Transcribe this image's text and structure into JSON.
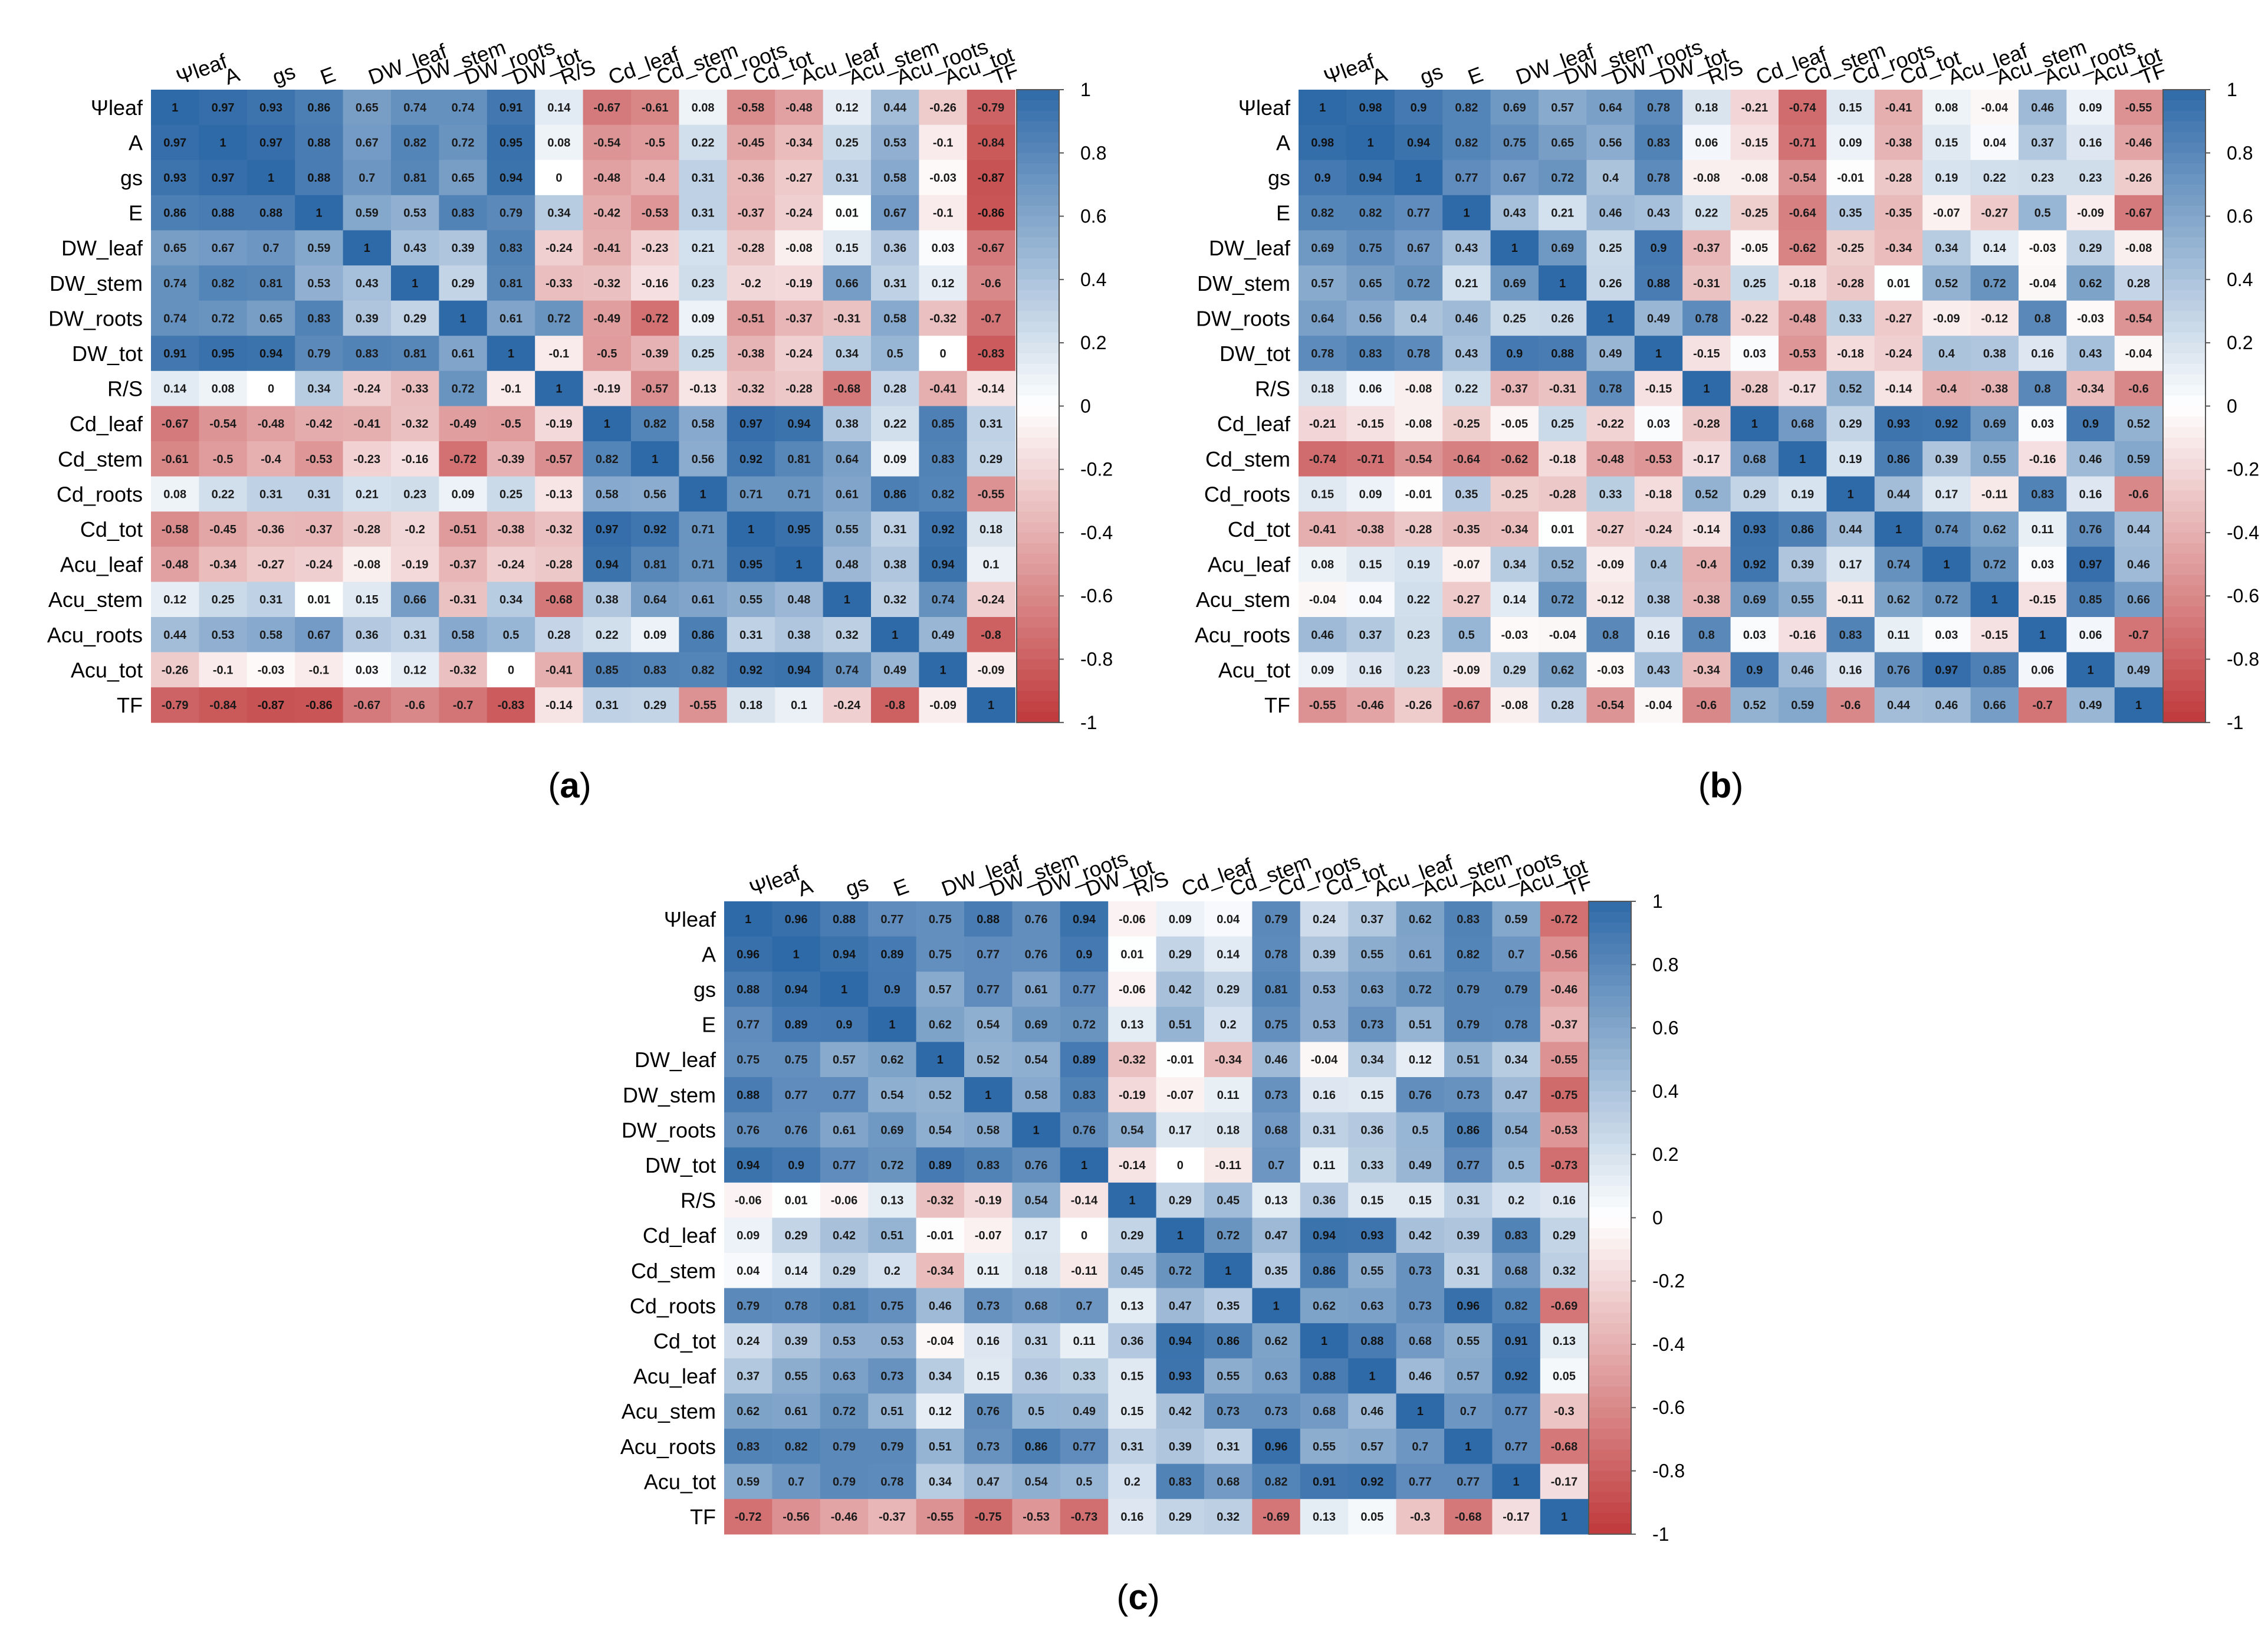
{
  "variables": [
    "Ψleaf",
    "A",
    "gs",
    "E",
    "DW_leaf",
    "DW_stem",
    "DW_roots",
    "DW_tot",
    "R/S",
    "Cd_leaf",
    "Cd_stem",
    "Cd_roots",
    "Cd_tot",
    "Acu_leaf",
    "Acu_stem",
    "Acu_roots",
    "Acu_tot",
    "TF"
  ],
  "colorbar": {
    "ticks": [
      "1",
      "0.8",
      "0.6",
      "0.4",
      "0.2",
      "0",
      "-0.2",
      "-0.4",
      "-0.6",
      "-0.8",
      "-1"
    ],
    "colors": {
      "positive": "#2f6aa8",
      "neutral": "#ffffff",
      "negative": "#c0393b"
    }
  },
  "chart_data": [
    {
      "type": "heatmap",
      "panel_label": "a",
      "title": "",
      "vrange": [
        -1,
        1
      ],
      "values": [
        [
          "1",
          "0.97",
          "0.93",
          "0.86",
          "0.65",
          "0.74",
          "0.74",
          "0.91",
          "0.14",
          "-0.67",
          "-0.61",
          "0.08",
          "-0.58",
          "-0.48",
          "0.12",
          "0.44",
          "-0.26",
          "-0.79"
        ],
        [
          "0.97",
          "1",
          "0.97",
          "0.88",
          "0.67",
          "0.82",
          "0.72",
          "0.95",
          "0.08",
          "-0.54",
          "-0.5",
          "0.22",
          "-0.45",
          "-0.34",
          "0.25",
          "0.53",
          "-0.1",
          "-0.84"
        ],
        [
          "0.93",
          "0.97",
          "1",
          "0.88",
          "0.7",
          "0.81",
          "0.65",
          "0.94",
          "0",
          "-0.48",
          "-0.4",
          "0.31",
          "-0.36",
          "-0.27",
          "0.31",
          "0.58",
          "-0.03",
          "-0.87"
        ],
        [
          "0.86",
          "0.88",
          "0.88",
          "1",
          "0.59",
          "0.53",
          "0.83",
          "0.79",
          "0.34",
          "-0.42",
          "-0.53",
          "0.31",
          "-0.37",
          "-0.24",
          "0.01",
          "0.67",
          "-0.1",
          "-0.86"
        ],
        [
          "0.65",
          "0.67",
          "0.7",
          "0.59",
          "1",
          "0.43",
          "0.39",
          "0.83",
          "-0.24",
          "-0.41",
          "-0.23",
          "0.21",
          "-0.28",
          "-0.08",
          "0.15",
          "0.36",
          "0.03",
          "-0.67"
        ],
        [
          "0.74",
          "0.82",
          "0.81",
          "0.53",
          "0.43",
          "1",
          "0.29",
          "0.81",
          "-0.33",
          "-0.32",
          "-0.16",
          "0.23",
          "-0.2",
          "-0.19",
          "0.66",
          "0.31",
          "0.12",
          "-0.6"
        ],
        [
          "0.74",
          "0.72",
          "0.65",
          "0.83",
          "0.39",
          "0.29",
          "1",
          "0.61",
          "0.72",
          "-0.49",
          "-0.72",
          "0.09",
          "-0.51",
          "-0.37",
          "-0.31",
          "0.58",
          "-0.32",
          "-0.7"
        ],
        [
          "0.91",
          "0.95",
          "0.94",
          "0.79",
          "0.83",
          "0.81",
          "0.61",
          "1",
          "-0.1",
          "-0.5",
          "-0.39",
          "0.25",
          "-0.38",
          "-0.24",
          "0.34",
          "0.5",
          "0",
          "-0.83"
        ],
        [
          "0.14",
          "0.08",
          "0",
          "0.34",
          "-0.24",
          "-0.33",
          "0.72",
          "-0.1",
          "1",
          "-0.19",
          "-0.57",
          "-0.13",
          "-0.32",
          "-0.28",
          "-0.68",
          "0.28",
          "-0.41",
          "-0.14"
        ],
        [
          "-0.67",
          "-0.54",
          "-0.48",
          "-0.42",
          "-0.41",
          "-0.32",
          "-0.49",
          "-0.5",
          "-0.19",
          "1",
          "0.82",
          "0.58",
          "0.97",
          "0.94",
          "0.38",
          "0.22",
          "0.85",
          "0.31"
        ],
        [
          "-0.61",
          "-0.5",
          "-0.4",
          "-0.53",
          "-0.23",
          "-0.16",
          "-0.72",
          "-0.39",
          "-0.57",
          "0.82",
          "1",
          "0.56",
          "0.92",
          "0.81",
          "0.64",
          "0.09",
          "0.83",
          "0.29"
        ],
        [
          "0.08",
          "0.22",
          "0.31",
          "0.31",
          "0.21",
          "0.23",
          "0.09",
          "0.25",
          "-0.13",
          "0.58",
          "0.56",
          "1",
          "0.71",
          "0.71",
          "0.61",
          "0.86",
          "0.82",
          "-0.55"
        ],
        [
          "-0.58",
          "-0.45",
          "-0.36",
          "-0.37",
          "-0.28",
          "-0.2",
          "-0.51",
          "-0.38",
          "-0.32",
          "0.97",
          "0.92",
          "0.71",
          "1",
          "0.95",
          "0.55",
          "0.31",
          "0.92",
          "0.18"
        ],
        [
          "-0.48",
          "-0.34",
          "-0.27",
          "-0.24",
          "-0.08",
          "-0.19",
          "-0.37",
          "-0.24",
          "-0.28",
          "0.94",
          "0.81",
          "0.71",
          "0.95",
          "1",
          "0.48",
          "0.38",
          "0.94",
          "0.1"
        ],
        [
          "0.12",
          "0.25",
          "0.31",
          "0.01",
          "0.15",
          "0.66",
          "-0.31",
          "0.34",
          "-0.68",
          "0.38",
          "0.64",
          "0.61",
          "0.55",
          "0.48",
          "1",
          "0.32",
          "0.74",
          "-0.24"
        ],
        [
          "0.44",
          "0.53",
          "0.58",
          "0.67",
          "0.36",
          "0.31",
          "0.58",
          "0.5",
          "0.28",
          "0.22",
          "0.09",
          "0.86",
          "0.31",
          "0.38",
          "0.32",
          "1",
          "0.49",
          "-0.8"
        ],
        [
          "-0.26",
          "-0.1",
          "-0.03",
          "-0.1",
          "0.03",
          "0.12",
          "-0.32",
          "0",
          "-0.41",
          "0.85",
          "0.83",
          "0.82",
          "0.92",
          "0.94",
          "0.74",
          "0.49",
          "1",
          "-0.09"
        ],
        [
          "-0.79",
          "-0.84",
          "-0.87",
          "-0.86",
          "-0.67",
          "-0.6",
          "-0.7",
          "-0.83",
          "-0.14",
          "0.31",
          "0.29",
          "-0.55",
          "0.18",
          "0.1",
          "-0.24",
          "-0.8",
          "-0.09",
          "1"
        ]
      ]
    },
    {
      "type": "heatmap",
      "panel_label": "b",
      "title": "",
      "vrange": [
        -1,
        1
      ],
      "values": [
        [
          "1",
          "0.98",
          "0.9",
          "0.82",
          "0.69",
          "0.57",
          "0.64",
          "0.78",
          "0.18",
          "-0.21",
          "-0.74",
          "0.15",
          "-0.41",
          "0.08",
          "-0.04",
          "0.46",
          "0.09",
          "-0.55"
        ],
        [
          "0.98",
          "1",
          "0.94",
          "0.82",
          "0.75",
          "0.65",
          "0.56",
          "0.83",
          "0.06",
          "-0.15",
          "-0.71",
          "0.09",
          "-0.38",
          "0.15",
          "0.04",
          "0.37",
          "0.16",
          "-0.46"
        ],
        [
          "0.9",
          "0.94",
          "1",
          "0.77",
          "0.67",
          "0.72",
          "0.4",
          "0.78",
          "-0.08",
          "-0.08",
          "-0.54",
          "-0.01",
          "-0.28",
          "0.19",
          "0.22",
          "0.23",
          "0.23",
          "-0.26"
        ],
        [
          "0.82",
          "0.82",
          "0.77",
          "1",
          "0.43",
          "0.21",
          "0.46",
          "0.43",
          "0.22",
          "-0.25",
          "-0.64",
          "0.35",
          "-0.35",
          "-0.07",
          "-0.27",
          "0.5",
          "-0.09",
          "-0.67"
        ],
        [
          "0.69",
          "0.75",
          "0.67",
          "0.43",
          "1",
          "0.69",
          "0.25",
          "0.9",
          "-0.37",
          "-0.05",
          "-0.62",
          "-0.25",
          "-0.34",
          "0.34",
          "0.14",
          "-0.03",
          "0.29",
          "-0.08"
        ],
        [
          "0.57",
          "0.65",
          "0.72",
          "0.21",
          "0.69",
          "1",
          "0.26",
          "0.88",
          "-0.31",
          "0.25",
          "-0.18",
          "-0.28",
          "0.01",
          "0.52",
          "0.72",
          "-0.04",
          "0.62",
          "0.28"
        ],
        [
          "0.64",
          "0.56",
          "0.4",
          "0.46",
          "0.25",
          "0.26",
          "1",
          "0.49",
          "0.78",
          "-0.22",
          "-0.48",
          "0.33",
          "-0.27",
          "-0.09",
          "-0.12",
          "0.8",
          "-0.03",
          "-0.54"
        ],
        [
          "0.78",
          "0.83",
          "0.78",
          "0.43",
          "0.9",
          "0.88",
          "0.49",
          "1",
          "-0.15",
          "0.03",
          "-0.53",
          "-0.18",
          "-0.24",
          "0.4",
          "0.38",
          "0.16",
          "0.43",
          "-0.04"
        ],
        [
          "0.18",
          "0.06",
          "-0.08",
          "0.22",
          "-0.37",
          "-0.31",
          "0.78",
          "-0.15",
          "1",
          "-0.28",
          "-0.17",
          "0.52",
          "-0.14",
          "-0.4",
          "-0.38",
          "0.8",
          "-0.34",
          "-0.6"
        ],
        [
          "-0.21",
          "-0.15",
          "-0.08",
          "-0.25",
          "-0.05",
          "0.25",
          "-0.22",
          "0.03",
          "-0.28",
          "1",
          "0.68",
          "0.29",
          "0.93",
          "0.92",
          "0.69",
          "0.03",
          "0.9",
          "0.52"
        ],
        [
          "-0.74",
          "-0.71",
          "-0.54",
          "-0.64",
          "-0.62",
          "-0.18",
          "-0.48",
          "-0.53",
          "-0.17",
          "0.68",
          "1",
          "0.19",
          "0.86",
          "0.39",
          "0.55",
          "-0.16",
          "0.46",
          "0.59"
        ],
        [
          "0.15",
          "0.09",
          "-0.01",
          "0.35",
          "-0.25",
          "-0.28",
          "0.33",
          "-0.18",
          "0.52",
          "0.29",
          "0.19",
          "1",
          "0.44",
          "0.17",
          "-0.11",
          "0.83",
          "0.16",
          "-0.6"
        ],
        [
          "-0.41",
          "-0.38",
          "-0.28",
          "-0.35",
          "-0.34",
          "0.01",
          "-0.27",
          "-0.24",
          "-0.14",
          "0.93",
          "0.86",
          "0.44",
          "1",
          "0.74",
          "0.62",
          "0.11",
          "0.76",
          "0.44"
        ],
        [
          "0.08",
          "0.15",
          "0.19",
          "-0.07",
          "0.34",
          "0.52",
          "-0.09",
          "0.4",
          "-0.4",
          "0.92",
          "0.39",
          "0.17",
          "0.74",
          "1",
          "0.72",
          "0.03",
          "0.97",
          "0.46"
        ],
        [
          "-0.04",
          "0.04",
          "0.22",
          "-0.27",
          "0.14",
          "0.72",
          "-0.12",
          "0.38",
          "-0.38",
          "0.69",
          "0.55",
          "-0.11",
          "0.62",
          "0.72",
          "1",
          "-0.15",
          "0.85",
          "0.66"
        ],
        [
          "0.46",
          "0.37",
          "0.23",
          "0.5",
          "-0.03",
          "-0.04",
          "0.8",
          "0.16",
          "0.8",
          "0.03",
          "-0.16",
          "0.83",
          "0.11",
          "0.03",
          "-0.15",
          "1",
          "0.06",
          "-0.7"
        ],
        [
          "0.09",
          "0.16",
          "0.23",
          "-0.09",
          "0.29",
          "0.62",
          "-0.03",
          "0.43",
          "-0.34",
          "0.9",
          "0.46",
          "0.16",
          "0.76",
          "0.97",
          "0.85",
          "0.06",
          "1",
          "0.49"
        ],
        [
          "-0.55",
          "-0.46",
          "-0.26",
          "-0.67",
          "-0.08",
          "0.28",
          "-0.54",
          "-0.04",
          "-0.6",
          "0.52",
          "0.59",
          "-0.6",
          "0.44",
          "0.46",
          "0.66",
          "-0.7",
          "0.49",
          "1"
        ]
      ]
    },
    {
      "type": "heatmap",
      "panel_label": "c",
      "title": "",
      "vrange": [
        -1,
        1
      ],
      "values": [
        [
          "1",
          "0.96",
          "0.88",
          "0.77",
          "0.75",
          "0.88",
          "0.76",
          "0.94",
          "-0.06",
          "0.09",
          "0.04",
          "0.79",
          "0.24",
          "0.37",
          "0.62",
          "0.83",
          "0.59",
          "-0.72"
        ],
        [
          "0.96",
          "1",
          "0.94",
          "0.89",
          "0.75",
          "0.77",
          "0.76",
          "0.9",
          "0.01",
          "0.29",
          "0.14",
          "0.78",
          "0.39",
          "0.55",
          "0.61",
          "0.82",
          "0.7",
          "-0.56"
        ],
        [
          "0.88",
          "0.94",
          "1",
          "0.9",
          "0.57",
          "0.77",
          "0.61",
          "0.77",
          "-0.06",
          "0.42",
          "0.29",
          "0.81",
          "0.53",
          "0.63",
          "0.72",
          "0.79",
          "0.79",
          "-0.46"
        ],
        [
          "0.77",
          "0.89",
          "0.9",
          "1",
          "0.62",
          "0.54",
          "0.69",
          "0.72",
          "0.13",
          "0.51",
          "0.2",
          "0.75",
          "0.53",
          "0.73",
          "0.51",
          "0.79",
          "0.78",
          "-0.37"
        ],
        [
          "0.75",
          "0.75",
          "0.57",
          "0.62",
          "1",
          "0.52",
          "0.54",
          "0.89",
          "-0.32",
          "-0.01",
          "-0.34",
          "0.46",
          "-0.04",
          "0.34",
          "0.12",
          "0.51",
          "0.34",
          "-0.55"
        ],
        [
          "0.88",
          "0.77",
          "0.77",
          "0.54",
          "0.52",
          "1",
          "0.58",
          "0.83",
          "-0.19",
          "-0.07",
          "0.11",
          "0.73",
          "0.16",
          "0.15",
          "0.76",
          "0.73",
          "0.47",
          "-0.75"
        ],
        [
          "0.76",
          "0.76",
          "0.61",
          "0.69",
          "0.54",
          "0.58",
          "1",
          "0.76",
          "0.54",
          "0.17",
          "0.18",
          "0.68",
          "0.31",
          "0.36",
          "0.5",
          "0.86",
          "0.54",
          "-0.53"
        ],
        [
          "0.94",
          "0.9",
          "0.77",
          "0.72",
          "0.89",
          "0.83",
          "0.76",
          "1",
          "-0.14",
          "0",
          "-0.11",
          "0.7",
          "0.11",
          "0.33",
          "0.49",
          "0.77",
          "0.5",
          "-0.73"
        ],
        [
          "-0.06",
          "0.01",
          "-0.06",
          "0.13",
          "-0.32",
          "-0.19",
          "0.54",
          "-0.14",
          "1",
          "0.29",
          "0.45",
          "0.13",
          "0.36",
          "0.15",
          "0.15",
          "0.31",
          "0.2",
          "0.16"
        ],
        [
          "0.09",
          "0.29",
          "0.42",
          "0.51",
          "-0.01",
          "-0.07",
          "0.17",
          "0",
          "0.29",
          "1",
          "0.72",
          "0.47",
          "0.94",
          "0.93",
          "0.42",
          "0.39",
          "0.83",
          "0.29"
        ],
        [
          "0.04",
          "0.14",
          "0.29",
          "0.2",
          "-0.34",
          "0.11",
          "0.18",
          "-0.11",
          "0.45",
          "0.72",
          "1",
          "0.35",
          "0.86",
          "0.55",
          "0.73",
          "0.31",
          "0.68",
          "0.32"
        ],
        [
          "0.79",
          "0.78",
          "0.81",
          "0.75",
          "0.46",
          "0.73",
          "0.68",
          "0.7",
          "0.13",
          "0.47",
          "0.35",
          "1",
          "0.62",
          "0.63",
          "0.73",
          "0.96",
          "0.82",
          "-0.69"
        ],
        [
          "0.24",
          "0.39",
          "0.53",
          "0.53",
          "-0.04",
          "0.16",
          "0.31",
          "0.11",
          "0.36",
          "0.94",
          "0.86",
          "0.62",
          "1",
          "0.88",
          "0.68",
          "0.55",
          "0.91",
          "0.13"
        ],
        [
          "0.37",
          "0.55",
          "0.63",
          "0.73",
          "0.34",
          "0.15",
          "0.36",
          "0.33",
          "0.15",
          "0.93",
          "0.55",
          "0.63",
          "0.88",
          "1",
          "0.46",
          "0.57",
          "0.92",
          "0.05"
        ],
        [
          "0.62",
          "0.61",
          "0.72",
          "0.51",
          "0.12",
          "0.76",
          "0.5",
          "0.49",
          "0.15",
          "0.42",
          "0.73",
          "0.73",
          "0.68",
          "0.46",
          "1",
          "0.7",
          "0.77",
          "-0.3"
        ],
        [
          "0.83",
          "0.82",
          "0.79",
          "0.79",
          "0.51",
          "0.73",
          "0.86",
          "0.77",
          "0.31",
          "0.39",
          "0.31",
          "0.96",
          "0.55",
          "0.57",
          "0.7",
          "1",
          "0.77",
          "-0.68"
        ],
        [
          "0.59",
          "0.7",
          "0.79",
          "0.78",
          "0.34",
          "0.47",
          "0.54",
          "0.5",
          "0.2",
          "0.83",
          "0.68",
          "0.82",
          "0.91",
          "0.92",
          "0.77",
          "0.77",
          "1",
          "-0.17"
        ],
        [
          "-0.72",
          "-0.56",
          "-0.46",
          "-0.37",
          "-0.55",
          "-0.75",
          "-0.53",
          "-0.73",
          "0.16",
          "0.29",
          "0.32",
          "-0.69",
          "0.13",
          "0.05",
          "-0.3",
          "-0.68",
          "-0.17",
          "1"
        ]
      ]
    }
  ]
}
